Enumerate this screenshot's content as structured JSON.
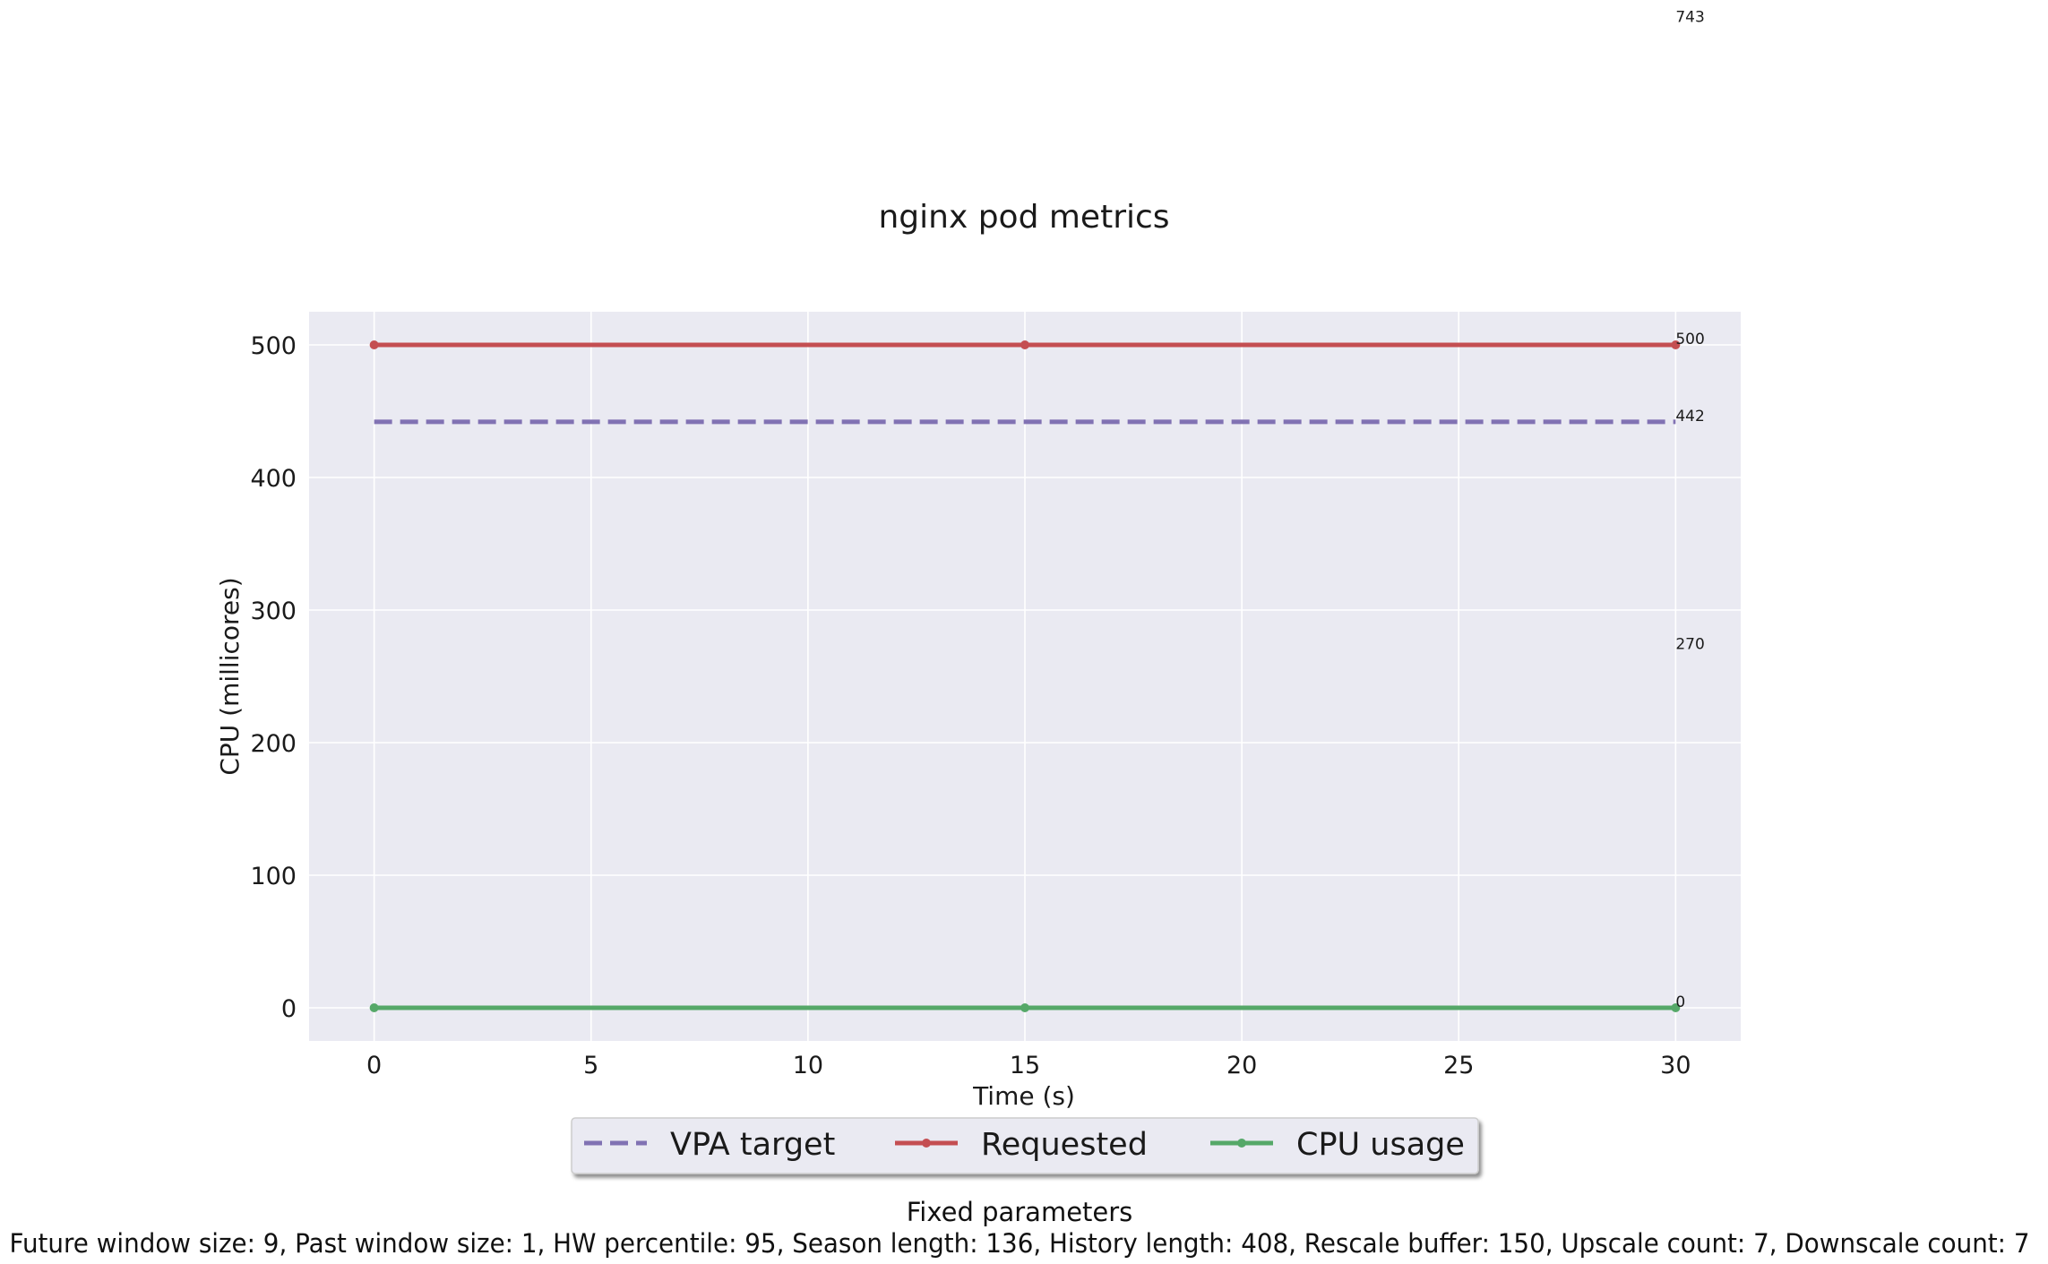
{
  "chart_data": {
    "type": "line",
    "title": "nginx pod metrics",
    "xlabel": "Time (s)",
    "ylabel": "CPU (millicores)",
    "xlim": [
      -1.5,
      31.5
    ],
    "ylim": [
      -25,
      525
    ],
    "xticks": [
      0,
      5,
      10,
      15,
      20,
      25,
      30
    ],
    "yticks": [
      0,
      100,
      200,
      300,
      400,
      500
    ],
    "grid": true,
    "legend_position": "bottom-center",
    "series": [
      {
        "name": "VPA target",
        "color": "#8172b3",
        "style": "dashed",
        "markers": false,
        "x": [
          0,
          15,
          30
        ],
        "y": [
          442,
          442,
          442
        ]
      },
      {
        "name": "Requested",
        "color": "#c44e52",
        "style": "solid",
        "markers": true,
        "x": [
          0,
          15,
          30
        ],
        "y": [
          500,
          500,
          500
        ]
      },
      {
        "name": "CPU usage",
        "color": "#55a868",
        "style": "solid",
        "markers": true,
        "x": [
          0,
          15,
          30
        ],
        "y": [
          0,
          0,
          0
        ]
      }
    ],
    "annotations": [
      {
        "text": "743",
        "x": 30,
        "y": 743
      },
      {
        "text": "500",
        "x": 30,
        "y": 500
      },
      {
        "text": "442",
        "x": 30,
        "y": 442
      },
      {
        "text": "270",
        "x": 30,
        "y": 270
      },
      {
        "text": "0",
        "x": 30,
        "y": 0
      }
    ]
  },
  "footer": {
    "heading": "Fixed parameters",
    "params": "Future window size: 9, Past window size: 1, HW percentile: 95, Season length: 136, History length: 408, Rescale buffer: 150, Upscale count: 7, Downscale count: 7"
  }
}
